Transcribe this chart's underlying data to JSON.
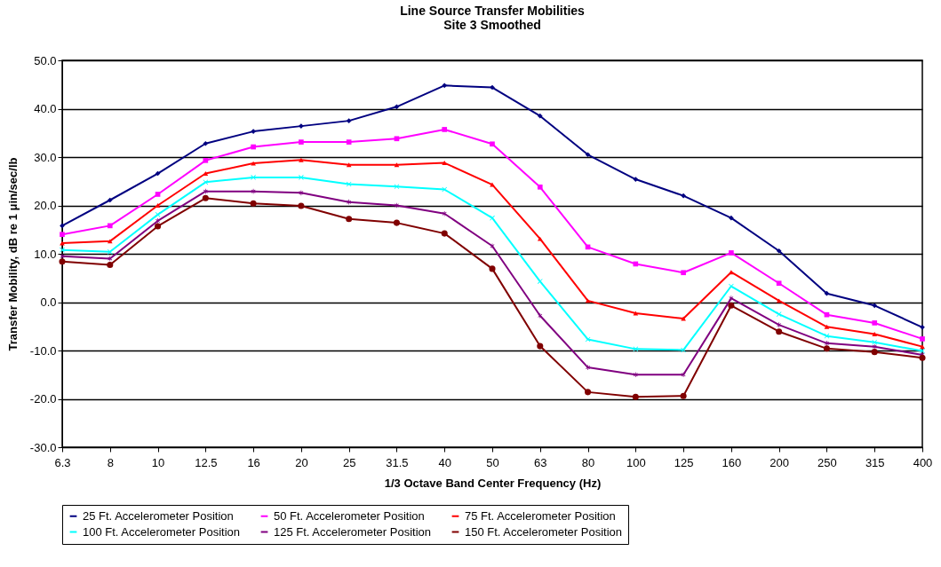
{
  "chart_data": {
    "type": "line",
    "title": "Line Source Transfer Mobilities",
    "subtitle": "Site 3 Smoothed",
    "xlabel": "1/3 Octave Band Center Frequency (Hz)",
    "ylabel": "Transfer Mobility, dB re 1 μin/sec/lb",
    "categories": [
      "6.3",
      "8",
      "10",
      "12.5",
      "16",
      "20",
      "25",
      "31.5",
      "40",
      "50",
      "63",
      "80",
      "100",
      "125",
      "160",
      "200",
      "250",
      "315",
      "400"
    ],
    "ylim": [
      -30,
      50
    ],
    "yticks": [
      {
        "value": -30,
        "label": "-30.0"
      },
      {
        "value": -20,
        "label": "-20.0"
      },
      {
        "value": -10,
        "label": "-10.0"
      },
      {
        "value": 0,
        "label": "0.0"
      },
      {
        "value": 10,
        "label": "10.0"
      },
      {
        "value": 20,
        "label": "20.0"
      },
      {
        "value": 30,
        "label": "30.0"
      },
      {
        "value": 40,
        "label": "40.0"
      },
      {
        "value": 50,
        "label": "50.0"
      }
    ],
    "grid": "y",
    "legend": "bottom",
    "line_style": "solid",
    "series": [
      {
        "name": "25 Ft. Accelerometer Position",
        "color": "#000080",
        "marker": "diamond",
        "values": [
          15.8,
          21.1,
          26.6,
          32.8,
          35.3,
          36.4,
          37.5,
          40.4,
          44.8,
          44.4,
          38.5,
          30.5,
          25.4,
          22.0,
          17.4,
          10.6,
          1.8,
          -0.7,
          -5.2
        ]
      },
      {
        "name": "50 Ft. Accelerometer Position",
        "color": "#ff00ff",
        "marker": "square",
        "values": [
          14.0,
          15.8,
          22.3,
          29.3,
          32.1,
          33.1,
          33.1,
          33.8,
          35.7,
          32.7,
          23.8,
          11.4,
          7.9,
          6.1,
          10.2,
          3.9,
          -2.6,
          -4.3,
          -7.6
        ]
      },
      {
        "name": "75 Ft. Accelerometer Position",
        "color": "#ff0000",
        "marker": "triangle",
        "values": [
          12.2,
          12.6,
          20.0,
          26.6,
          28.7,
          29.4,
          28.4,
          28.4,
          28.8,
          24.3,
          13.1,
          0.3,
          -2.3,
          -3.4,
          6.2,
          0.3,
          -5.1,
          -6.6,
          -9.2
        ]
      },
      {
        "name": "100 Ft. Accelerometer Position",
        "color": "#00ffff",
        "marker": "cross",
        "values": [
          10.8,
          10.4,
          18.1,
          24.8,
          25.8,
          25.8,
          24.4,
          23.9,
          23.3,
          17.4,
          4.3,
          -7.7,
          -9.7,
          -9.9,
          3.3,
          -2.5,
          -7.0,
          -8.3,
          -10.1
        ]
      },
      {
        "name": "125 Ft. Accelerometer Position",
        "color": "#800080",
        "marker": "star",
        "values": [
          9.5,
          9.0,
          16.8,
          22.9,
          22.9,
          22.6,
          20.7,
          20.0,
          18.3,
          11.6,
          -2.8,
          -13.5,
          -15.0,
          -15.0,
          0.8,
          -4.7,
          -8.5,
          -9.2,
          -10.9
        ]
      },
      {
        "name": "150 Ft. Accelerometer Position",
        "color": "#800000",
        "marker": "circle",
        "values": [
          8.4,
          7.7,
          15.7,
          21.5,
          20.4,
          19.9,
          17.2,
          16.4,
          14.2,
          6.9,
          -9.1,
          -18.6,
          -19.6,
          -19.4,
          -0.7,
          -6.1,
          -9.6,
          -10.3,
          -11.5
        ]
      }
    ]
  }
}
